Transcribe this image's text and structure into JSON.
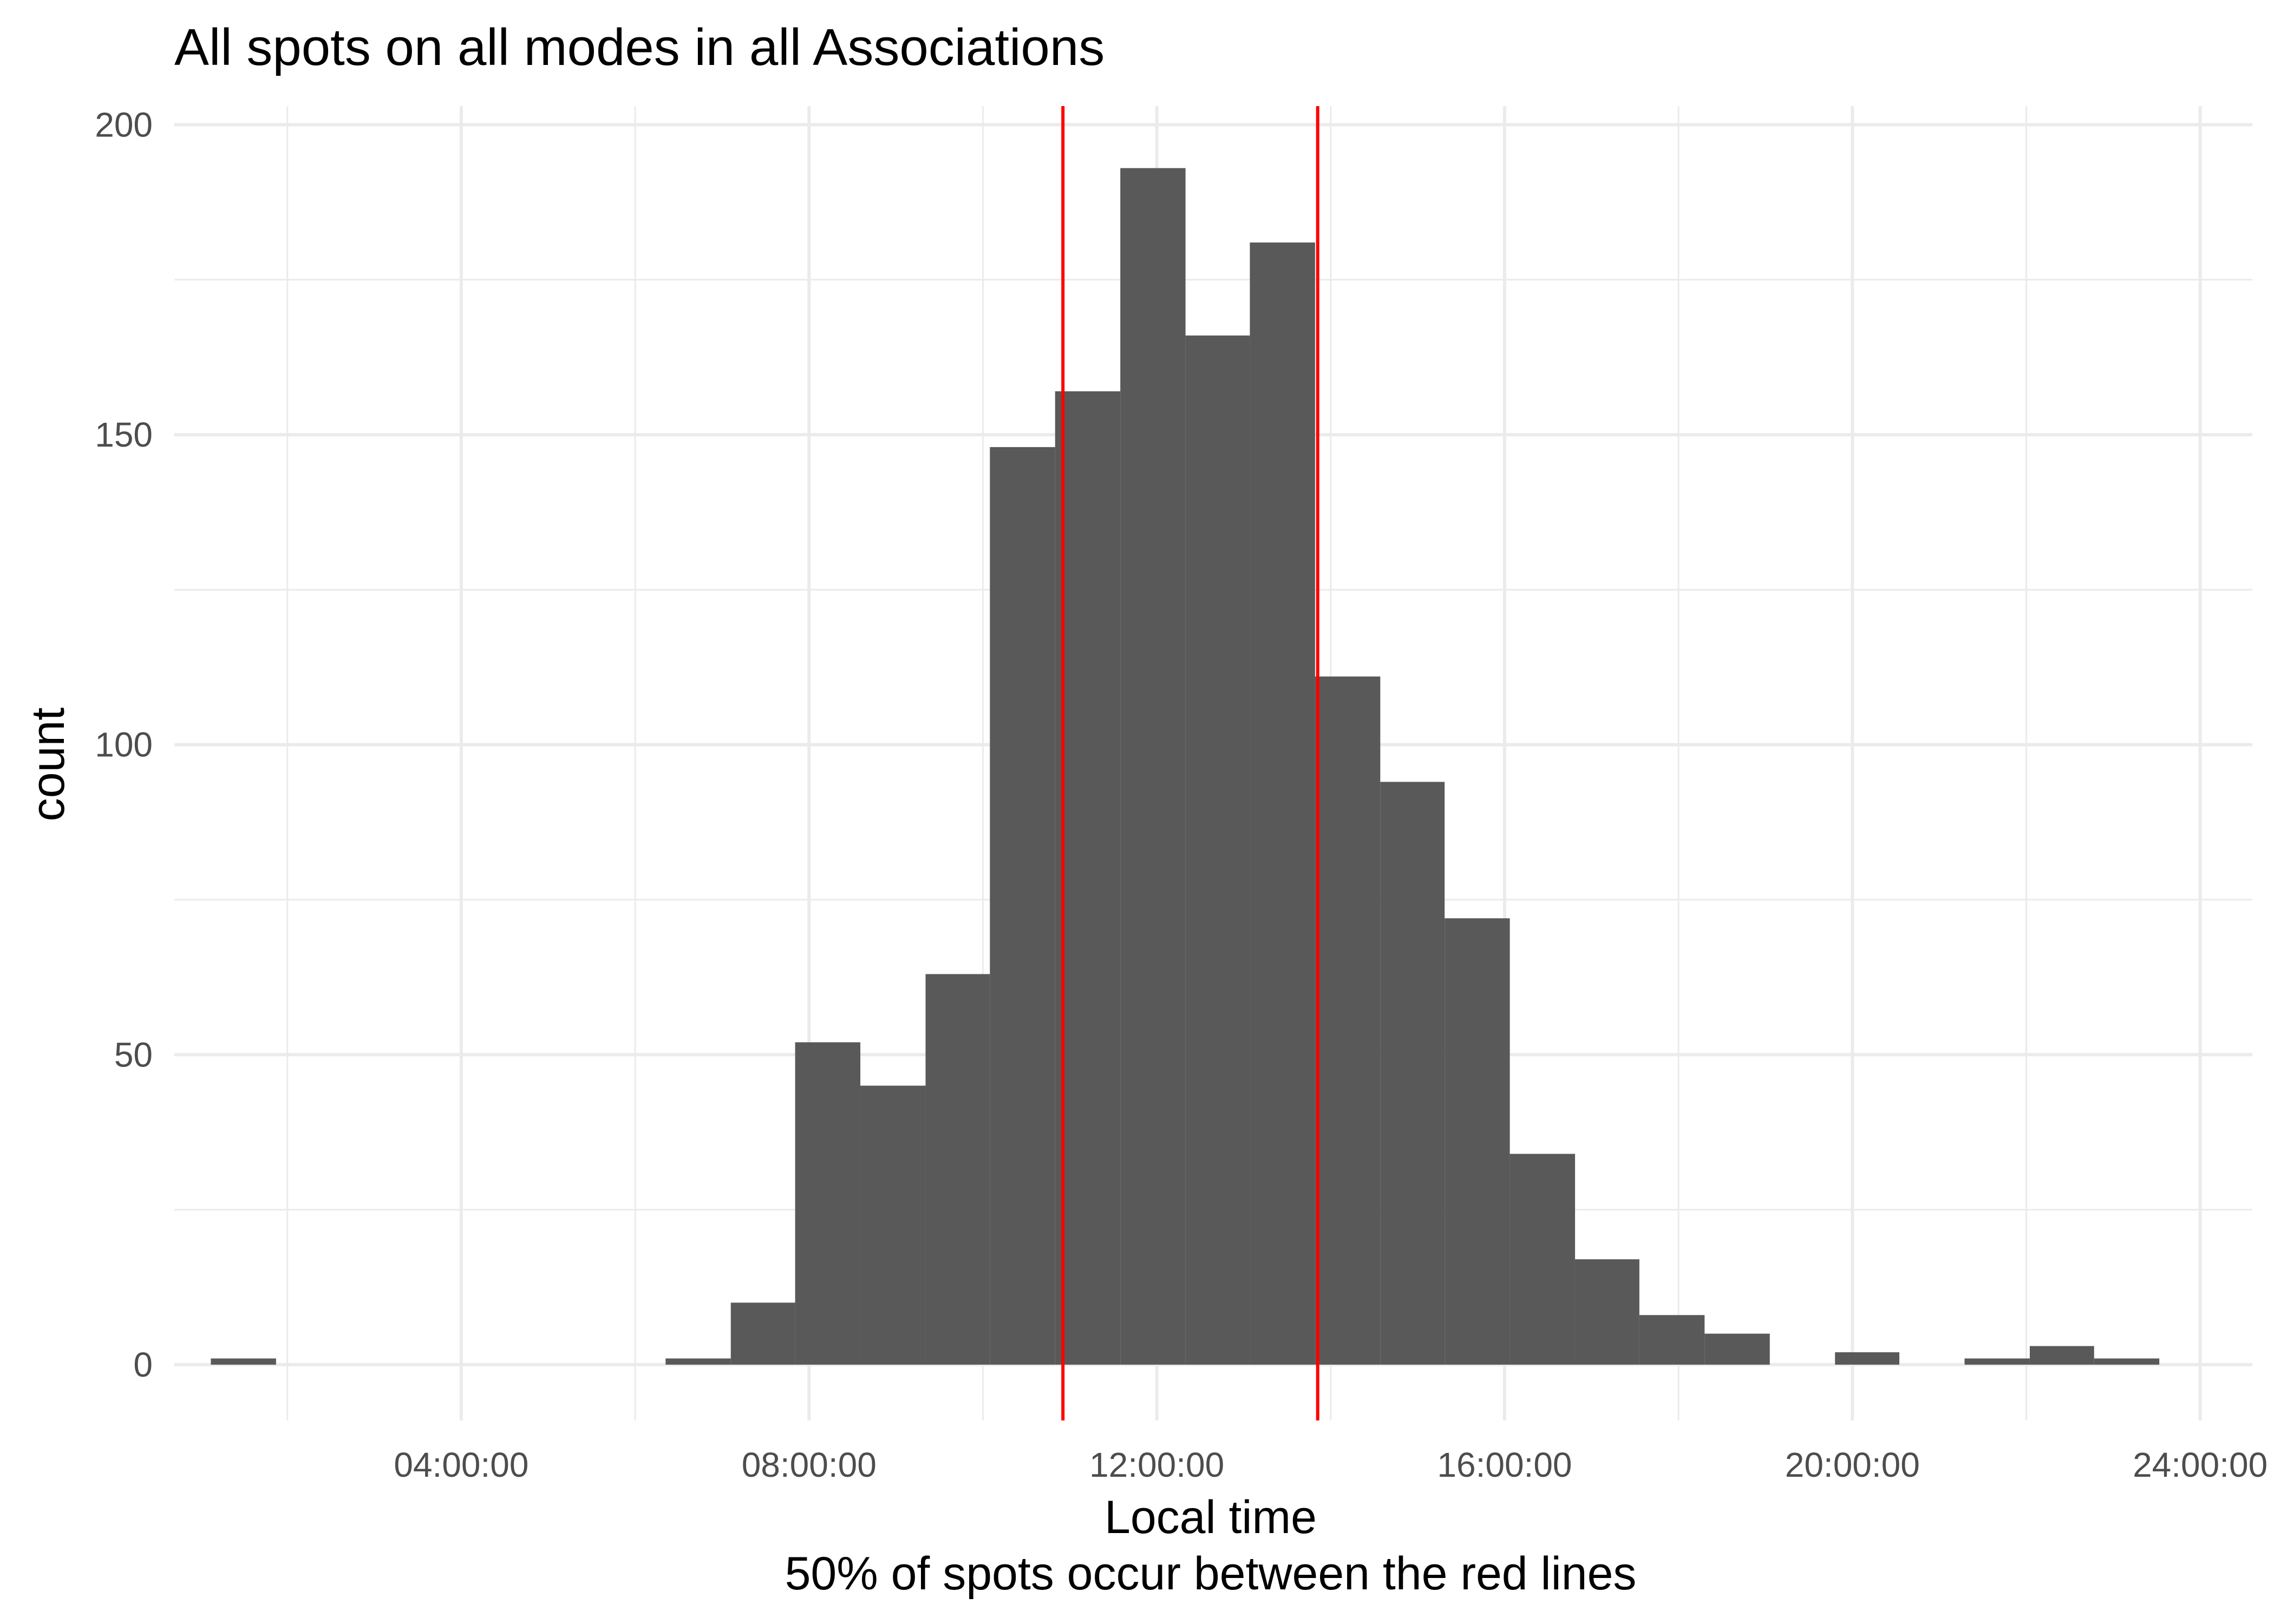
{
  "chart_data": {
    "type": "bar",
    "title": "All spots on all modes in all Associations",
    "xlabel": "Local time",
    "subcaption": "50% of spots occur between the red lines",
    "ylabel": "count",
    "x_unit": "hours",
    "xlim": [
      0.7,
      24.6
    ],
    "ylim": [
      -9,
      203
    ],
    "x_ticks": [
      {
        "value": 4,
        "label": "04:00:00"
      },
      {
        "value": 8,
        "label": "08:00:00"
      },
      {
        "value": 12,
        "label": "12:00:00"
      },
      {
        "value": 16,
        "label": "16:00:00"
      },
      {
        "value": 20,
        "label": "20:00:00"
      },
      {
        "value": 24,
        "label": "24:00:00"
      }
    ],
    "x_minor_ticks": [
      2,
      6,
      10,
      14,
      18,
      22
    ],
    "y_ticks": [
      0,
      50,
      100,
      150,
      200
    ],
    "y_minor_ticks": [
      25,
      75,
      125,
      175
    ],
    "bins": [
      {
        "start": 1.12,
        "end": 1.87,
        "count": 1
      },
      {
        "start": 1.87,
        "end": 2.61,
        "count": 0
      },
      {
        "start": 2.61,
        "end": 3.36,
        "count": 0
      },
      {
        "start": 3.36,
        "end": 4.11,
        "count": 0
      },
      {
        "start": 4.11,
        "end": 4.86,
        "count": 0
      },
      {
        "start": 4.86,
        "end": 5.6,
        "count": 0
      },
      {
        "start": 5.6,
        "end": 6.35,
        "count": 0
      },
      {
        "start": 6.35,
        "end": 7.1,
        "count": 1
      },
      {
        "start": 7.1,
        "end": 7.84,
        "count": 10
      },
      {
        "start": 7.84,
        "end": 8.59,
        "count": 52
      },
      {
        "start": 8.59,
        "end": 9.34,
        "count": 45
      },
      {
        "start": 9.34,
        "end": 10.08,
        "count": 63
      },
      {
        "start": 10.08,
        "end": 10.83,
        "count": 148
      },
      {
        "start": 10.83,
        "end": 11.58,
        "count": 157
      },
      {
        "start": 11.58,
        "end": 12.33,
        "count": 193
      },
      {
        "start": 12.33,
        "end": 13.07,
        "count": 166
      },
      {
        "start": 13.07,
        "end": 13.82,
        "count": 181
      },
      {
        "start": 13.82,
        "end": 14.57,
        "count": 111
      },
      {
        "start": 14.57,
        "end": 15.31,
        "count": 94
      },
      {
        "start": 15.31,
        "end": 16.06,
        "count": 72
      },
      {
        "start": 16.06,
        "end": 16.81,
        "count": 34
      },
      {
        "start": 16.81,
        "end": 17.55,
        "count": 17
      },
      {
        "start": 17.55,
        "end": 18.3,
        "count": 8
      },
      {
        "start": 18.3,
        "end": 19.05,
        "count": 5
      },
      {
        "start": 19.05,
        "end": 19.8,
        "count": 0
      },
      {
        "start": 19.8,
        "end": 20.54,
        "count": 2
      },
      {
        "start": 20.54,
        "end": 21.29,
        "count": 0
      },
      {
        "start": 21.29,
        "end": 22.04,
        "count": 1
      },
      {
        "start": 22.04,
        "end": 22.78,
        "count": 3
      },
      {
        "start": 22.78,
        "end": 23.53,
        "count": 1
      }
    ],
    "bar_color": "#595959",
    "reference_lines": [
      {
        "x": 10.92,
        "color": "#ff0000"
      },
      {
        "x": 13.85,
        "color": "#ff0000"
      }
    ],
    "grid": true,
    "legend": "none"
  }
}
